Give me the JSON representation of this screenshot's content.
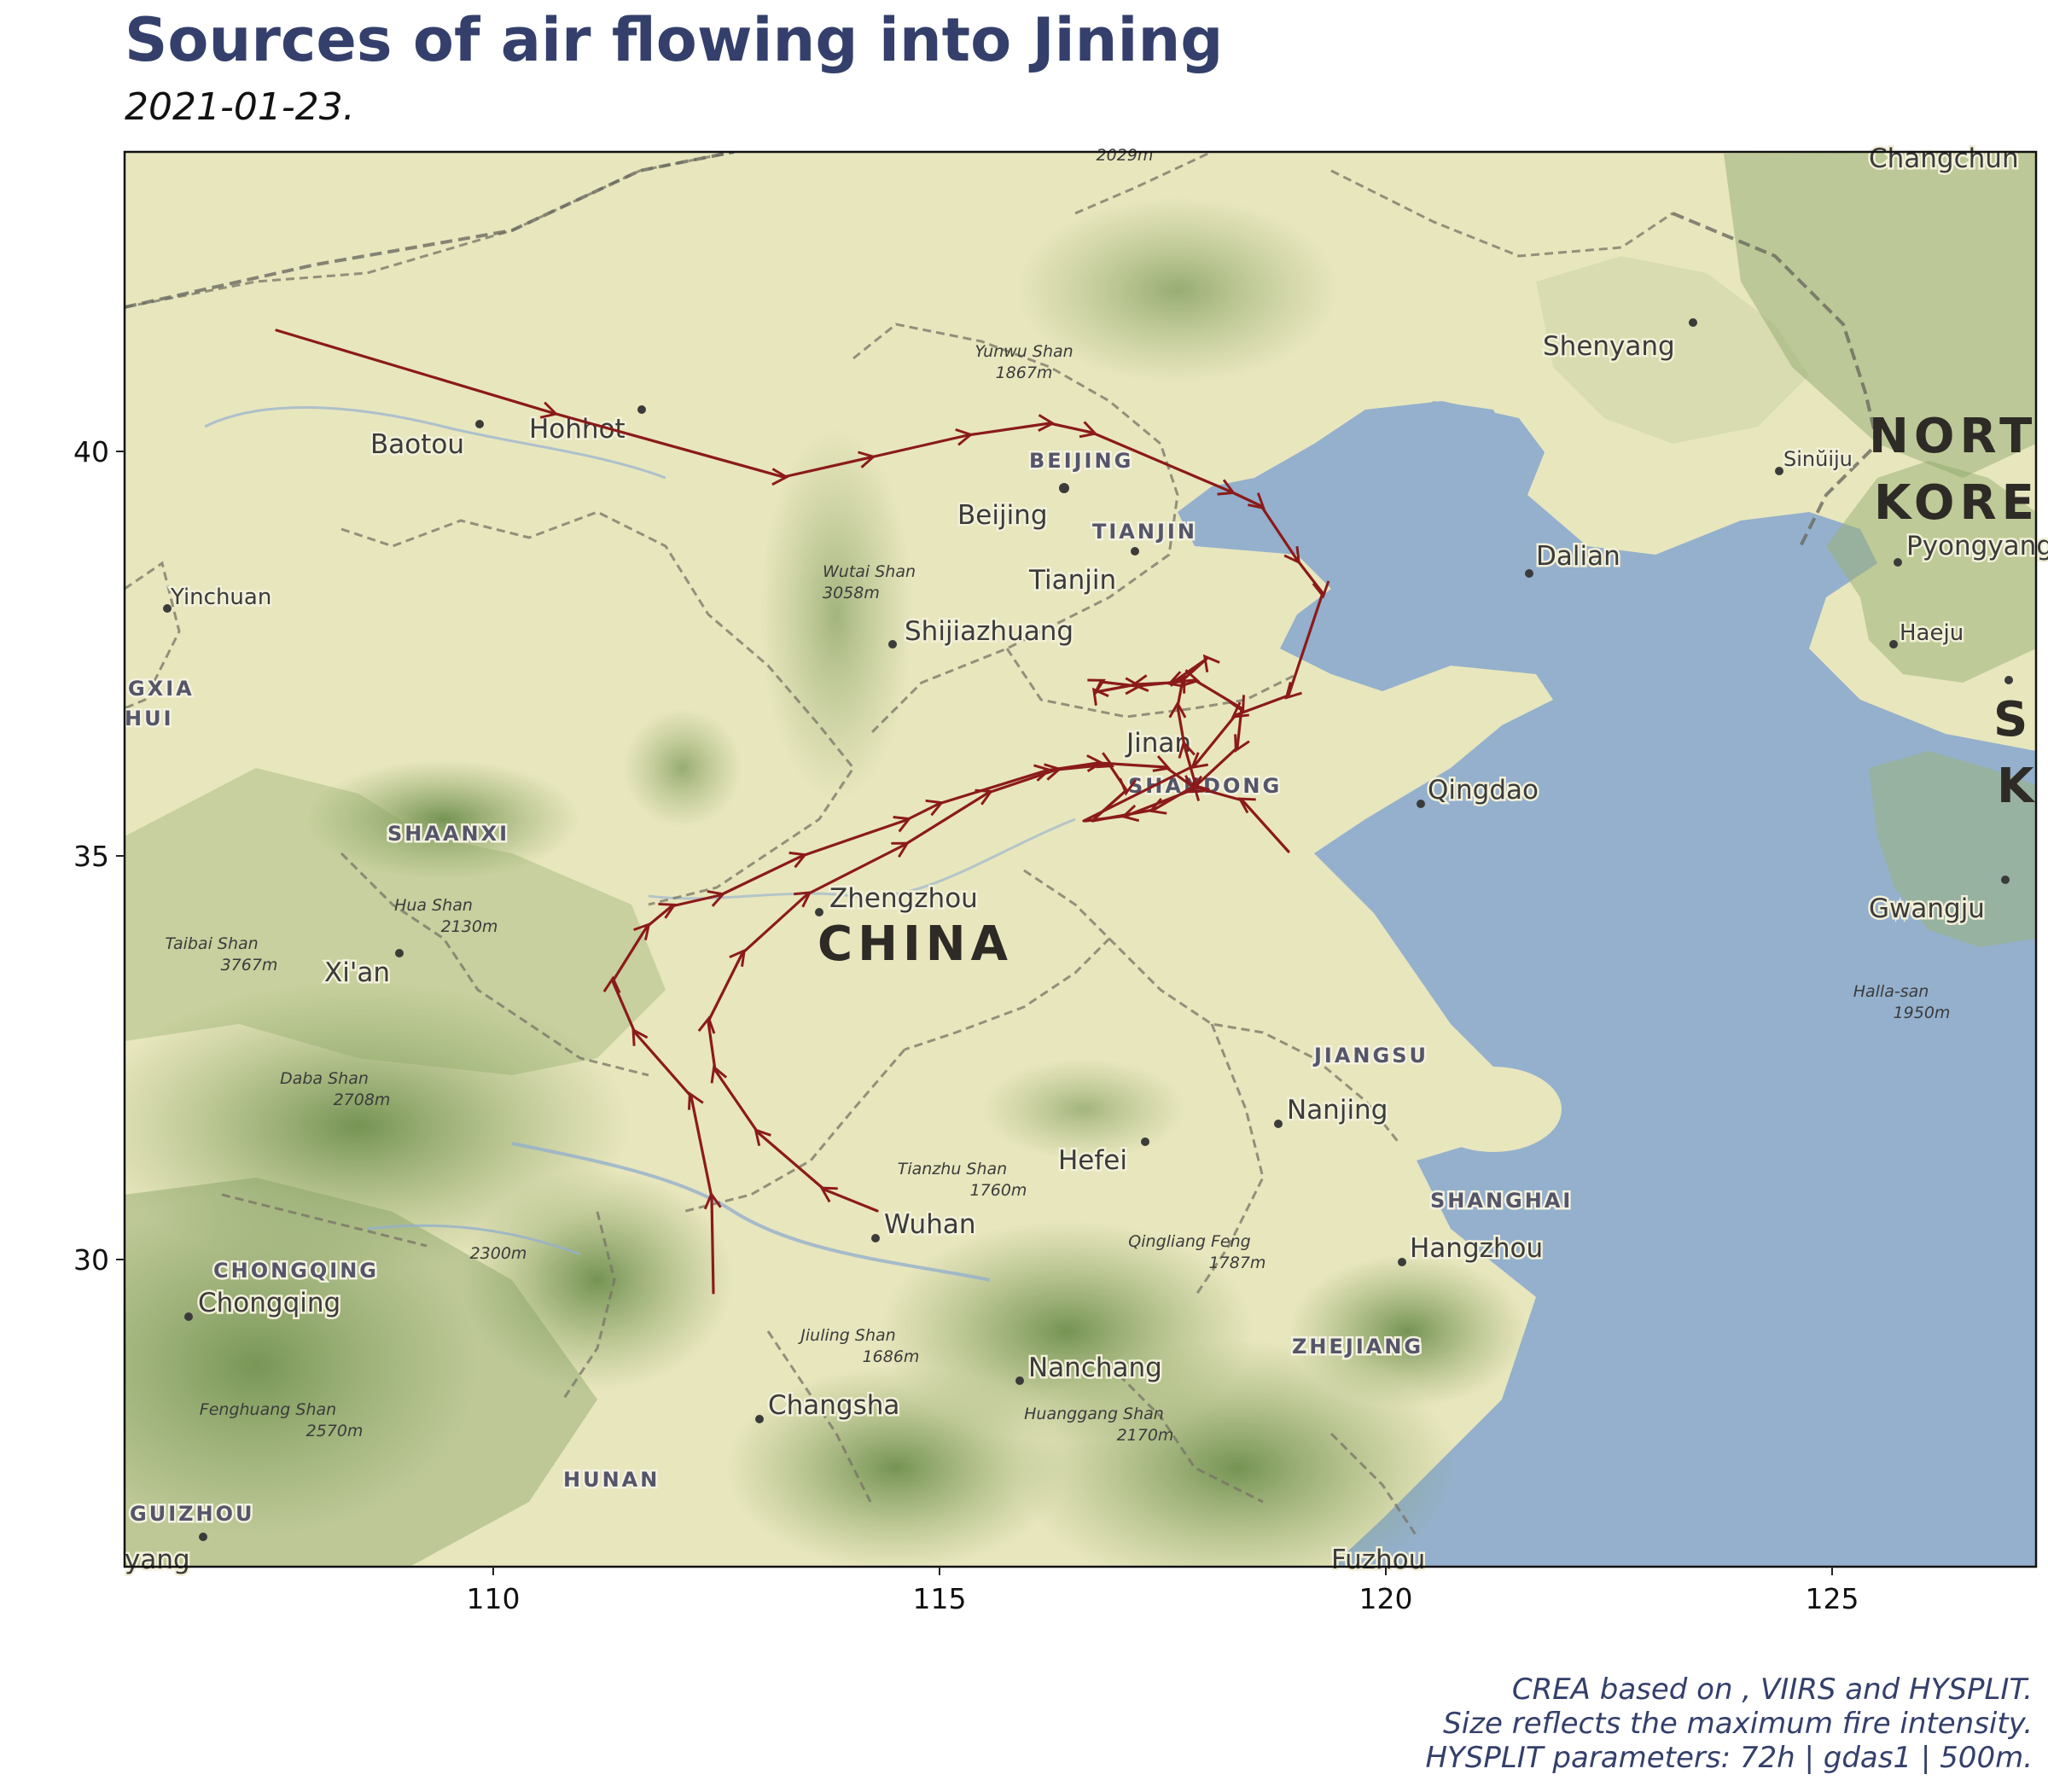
{
  "title": "Sources of air flowing into Jining",
  "subtitle": "2021-01-23.",
  "map": {
    "x_ticks": [
      "110",
      "115",
      "120",
      "125"
    ],
    "y_ticks": [
      "40",
      "35",
      "30"
    ],
    "trajectory_color": "#8b1a1a",
    "land_color": "#e8e6bd",
    "water_color": "#94b0cd",
    "country_label": "CHINA",
    "partial_labels": [
      "NORT",
      "KORE",
      "GXIA",
      "HUI",
      "S",
      "K"
    ],
    "cities": [
      "Baotou",
      "Hohhot",
      "Beijing",
      "Tianjin",
      "Shijiazhuang",
      "Yinchuan",
      "Shenyang",
      "Dalian",
      "Sinŭiju",
      "Pyongyang",
      "Haeju",
      "Jinan",
      "Qingdao",
      "Zhengzhou",
      "Xi'an",
      "Gwangju",
      "Nanjing",
      "Hefei",
      "Wuhan",
      "Hangzhou",
      "Chongqing",
      "Nanchang",
      "Changsha",
      "Changchun",
      "Fuzhou",
      "yang"
    ],
    "provinces": [
      "BEIJING",
      "TIANJIN",
      "SHANDONG",
      "SHAANXI",
      "JIANGSU",
      "SHANGHAI",
      "CHONGQING",
      "ZHEJIANG",
      "HUNAN",
      "GUIZHOU"
    ],
    "peaks": [
      {
        "name": "Yunwu Shan",
        "height": "1867m"
      },
      {
        "name": "Wutai Shan",
        "height": "3058m"
      },
      {
        "name": "Hua Shan",
        "height": "2130m"
      },
      {
        "name": "Taibai Shan",
        "height": "3767m"
      },
      {
        "name": "Daba Shan",
        "height": "2708m"
      },
      {
        "name": "Tianzhu Shan",
        "height": "1760m"
      },
      {
        "name": "Qingliang Feng",
        "height": "1787m"
      },
      {
        "name": "Jiuling Shan",
        "height": "1686m"
      },
      {
        "name": "Huanggang Shan",
        "height": "2170m"
      },
      {
        "name": "Fenghuang Shan",
        "height": "2570m"
      },
      {
        "name": "Halla-san",
        "height": "1950m"
      },
      {
        "name": "",
        "height": "2300m"
      },
      {
        "name": "",
        "height": "2029m"
      }
    ]
  },
  "caption": {
    "line1": "CREA based on , VIIRS and HYSPLIT.",
    "line2": "Size reflects the maximum fire intensity.",
    "line3": "HYSPLIT parameters: 72h | gdas1 | 500m."
  }
}
